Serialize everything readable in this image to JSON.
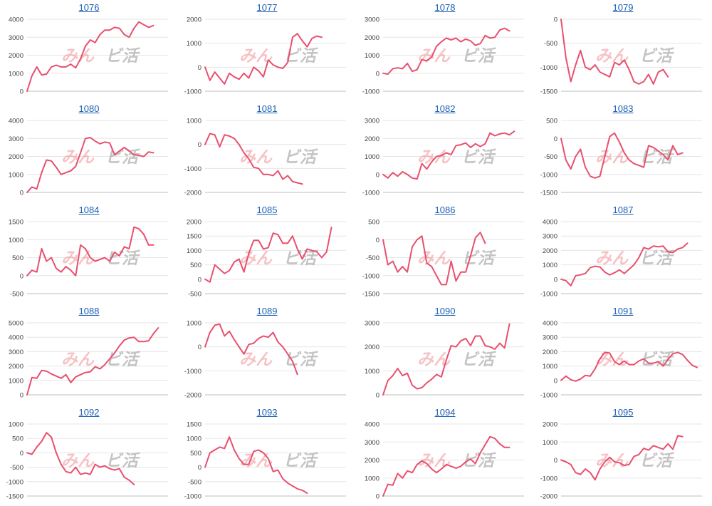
{
  "watermark": {
    "left": "みん",
    "right": "ビ活"
  },
  "colors": {
    "line": "#e8506e",
    "title": "#1a5fb4"
  },
  "chart_data": [
    {
      "type": "line",
      "title": "1076",
      "ylim": [
        0,
        4000
      ],
      "yticks": [
        0,
        1000,
        2000,
        3000,
        4000
      ],
      "values": [
        0,
        850,
        1350,
        900,
        950,
        1350,
        1450,
        1350,
        1350,
        1500,
        1300,
        1800,
        2500,
        2850,
        2700,
        3150,
        3400,
        3400,
        3550,
        3500,
        3150,
        3000,
        3500,
        3850,
        3700,
        3550,
        3650
      ]
    },
    {
      "type": "line",
      "title": "1077",
      "ylim": [
        -1000,
        2000
      ],
      "yticks": [
        -1000,
        0,
        1000,
        2000
      ],
      "values": [
        0,
        -550,
        -200,
        -450,
        -700,
        -250,
        -400,
        -500,
        -250,
        -450,
        0,
        -150,
        -400,
        300,
        100,
        0,
        -50,
        200,
        1250,
        1400,
        1100,
        850,
        1200,
        1300,
        1250
      ]
    },
    {
      "type": "line",
      "title": "1078",
      "ylim": [
        -1000,
        3000
      ],
      "yticks": [
        -1000,
        0,
        1000,
        2000,
        3000
      ],
      "values": [
        0,
        -50,
        250,
        300,
        250,
        550,
        100,
        200,
        750,
        700,
        900,
        1500,
        1750,
        1950,
        1850,
        1950,
        1750,
        1900,
        1800,
        1550,
        1650,
        2100,
        1950,
        2000,
        2400,
        2500,
        2350
      ]
    },
    {
      "type": "line",
      "title": "1079",
      "ylim": [
        -1500,
        0
      ],
      "yticks": [
        -1500,
        -1000,
        -500,
        0
      ],
      "values": [
        0,
        -800,
        -1300,
        -950,
        -650,
        -1000,
        -1050,
        -950,
        -1100,
        -1150,
        -1200,
        -900,
        -950,
        -850,
        -1050,
        -1300,
        -1350,
        -1300,
        -1150,
        -1350,
        -1100,
        -1050,
        -1200
      ]
    },
    {
      "type": "line",
      "title": "1080",
      "ylim": [
        0,
        4000
      ],
      "yticks": [
        0,
        1000,
        2000,
        3000,
        4000
      ],
      "values": [
        0,
        300,
        200,
        1100,
        1800,
        1750,
        1400,
        1000,
        1100,
        1200,
        1450,
        2200,
        3000,
        3050,
        2850,
        2700,
        2800,
        2750,
        2100,
        2300,
        2500,
        2300,
        2100,
        2050,
        2000,
        2250,
        2200
      ]
    },
    {
      "type": "line",
      "title": "1081",
      "ylim": [
        -2000,
        1000
      ],
      "yticks": [
        -2000,
        -1000,
        0,
        1000
      ],
      "values": [
        0,
        450,
        400,
        -100,
        400,
        350,
        250,
        0,
        -350,
        -600,
        -950,
        -1000,
        -1250,
        -1250,
        -1300,
        -1100,
        -1450,
        -1300,
        -1550,
        -1600,
        -1650
      ]
    },
    {
      "type": "line",
      "title": "1082",
      "ylim": [
        -1000,
        3000
      ],
      "yticks": [
        -1000,
        0,
        1000,
        2000,
        3000
      ],
      "values": [
        0,
        -200,
        100,
        -100,
        150,
        0,
        -200,
        -250,
        600,
        300,
        700,
        1000,
        1050,
        1200,
        1100,
        1600,
        1650,
        1750,
        1500,
        1700,
        1550,
        1700,
        2300,
        2150,
        2250,
        2300,
        2200,
        2400
      ]
    },
    {
      "type": "line",
      "title": "1083",
      "ylim": [
        -1500,
        500
      ],
      "yticks": [
        -1500,
        -1000,
        -500,
        0,
        500
      ],
      "values": [
        0,
        -600,
        -850,
        -500,
        -300,
        -800,
        -1050,
        -1100,
        -1050,
        -500,
        50,
        150,
        -100,
        -400,
        -600,
        -700,
        -750,
        -800,
        -200,
        -250,
        -350,
        -450,
        -600,
        -200,
        -450,
        -400
      ]
    },
    {
      "type": "line",
      "title": "1084",
      "ylim": [
        -500,
        1500
      ],
      "yticks": [
        -500,
        0,
        500,
        1000,
        1500
      ],
      "values": [
        0,
        150,
        100,
        750,
        400,
        500,
        200,
        100,
        250,
        150,
        0,
        850,
        750,
        500,
        400,
        450,
        500,
        400,
        650,
        550,
        800,
        750,
        1350,
        1300,
        1150,
        850,
        850
      ]
    },
    {
      "type": "line",
      "title": "1085",
      "ylim": [
        -500,
        2000
      ],
      "yticks": [
        -500,
        0,
        500,
        1000,
        1500,
        2000
      ],
      "values": [
        0,
        -100,
        500,
        350,
        200,
        300,
        600,
        700,
        250,
        900,
        1350,
        1350,
        1050,
        1100,
        1600,
        1550,
        1250,
        1250,
        1500,
        1050,
        700,
        1050,
        1000,
        950,
        750,
        950,
        1800
      ]
    },
    {
      "type": "line",
      "title": "1086",
      "ylim": [
        -1500,
        500
      ],
      "yticks": [
        -1500,
        -1000,
        -500,
        0,
        500
      ],
      "values": [
        0,
        -700,
        -600,
        -900,
        -750,
        -900,
        -200,
        0,
        100,
        -650,
        -750,
        -1000,
        -1250,
        -1250,
        -600,
        -1150,
        -900,
        -900,
        -450,
        50,
        200,
        -100
      ]
    },
    {
      "type": "line",
      "title": "1087",
      "ylim": [
        -1000,
        4000
      ],
      "yticks": [
        -1000,
        0,
        1000,
        2000,
        3000,
        4000
      ],
      "values": [
        0,
        -100,
        -450,
        250,
        300,
        400,
        800,
        900,
        850,
        500,
        300,
        450,
        650,
        400,
        700,
        1000,
        1500,
        2200,
        2100,
        2300,
        2250,
        2300,
        1900,
        1850,
        2100,
        2200,
        2500
      ]
    },
    {
      "type": "line",
      "title": "1088",
      "ylim": [
        0,
        5000
      ],
      "yticks": [
        0,
        1000,
        2000,
        3000,
        4000,
        5000
      ],
      "values": [
        0,
        1200,
        1150,
        1700,
        1650,
        1450,
        1300,
        1150,
        1400,
        850,
        1250,
        1400,
        1550,
        1600,
        1950,
        1800,
        2100,
        2500,
        2900,
        3400,
        3800,
        3950,
        4000,
        3700,
        3700,
        3750,
        4250,
        4650
      ]
    },
    {
      "type": "line",
      "title": "1089",
      "ylim": [
        -2000,
        1000
      ],
      "yticks": [
        -2000,
        -1000,
        0,
        1000
      ],
      "values": [
        0,
        600,
        900,
        950,
        450,
        650,
        300,
        0,
        -300,
        100,
        150,
        350,
        450,
        400,
        600,
        200,
        0,
        -300,
        -600,
        -1150
      ]
    },
    {
      "type": "line",
      "title": "1090",
      "ylim": [
        0,
        3000
      ],
      "yticks": [
        0,
        1000,
        2000,
        3000
      ],
      "values": [
        0,
        600,
        800,
        1100,
        800,
        900,
        400,
        250,
        300,
        500,
        650,
        850,
        750,
        1450,
        2050,
        2000,
        2250,
        2350,
        2050,
        2450,
        2450,
        2050,
        2000,
        1900,
        2150,
        1950,
        2950
      ]
    },
    {
      "type": "line",
      "title": "1091",
      "ylim": [
        -1000,
        4000
      ],
      "yticks": [
        -1000,
        0,
        1000,
        2000,
        3000,
        4000
      ],
      "values": [
        0,
        300,
        50,
        -50,
        100,
        350,
        300,
        800,
        1500,
        1950,
        1900,
        1300,
        1100,
        1350,
        1100,
        1100,
        1350,
        1500,
        1200,
        1200,
        1300,
        1000,
        1450,
        1850,
        1950,
        1800,
        1400,
        1050,
        900
      ]
    },
    {
      "type": "line",
      "title": "1092",
      "ylim": [
        -1500,
        1000
      ],
      "yticks": [
        -1500,
        -1000,
        -500,
        0,
        500,
        1000
      ],
      "values": [
        0,
        -50,
        200,
        400,
        700,
        550,
        0,
        -400,
        -650,
        -700,
        -500,
        -750,
        -700,
        -750,
        -400,
        -500,
        -450,
        -550,
        -600,
        -550,
        -850,
        -950,
        -1100
      ]
    },
    {
      "type": "line",
      "title": "1093",
      "ylim": [
        -1000,
        1500
      ],
      "yticks": [
        -1000,
        -500,
        0,
        500,
        1000,
        1500
      ],
      "values": [
        0,
        500,
        600,
        700,
        650,
        1050,
        600,
        300,
        100,
        100,
        550,
        600,
        500,
        300,
        -150,
        -100,
        -400,
        -550,
        -650,
        -750,
        -800,
        -900
      ]
    },
    {
      "type": "line",
      "title": "1094",
      "ylim": [
        0,
        4000
      ],
      "yticks": [
        0,
        1000,
        2000,
        3000,
        4000
      ],
      "values": [
        0,
        650,
        600,
        1250,
        1000,
        1400,
        1300,
        1750,
        1950,
        1800,
        1500,
        1300,
        1500,
        1750,
        1650,
        1550,
        1650,
        1900,
        2050,
        1800,
        2400,
        2850,
        3300,
        3200,
        2900,
        2700,
        2700
      ]
    },
    {
      "type": "line",
      "title": "1095",
      "ylim": [
        -2000,
        2000
      ],
      "yticks": [
        -2000,
        -1000,
        0,
        1000,
        2000
      ],
      "values": [
        0,
        -100,
        -250,
        -700,
        -800,
        -500,
        -700,
        -1100,
        -500,
        -100,
        150,
        -100,
        -150,
        -300,
        -250,
        200,
        300,
        650,
        550,
        800,
        700,
        600,
        900,
        600,
        1350,
        1300
      ]
    }
  ]
}
